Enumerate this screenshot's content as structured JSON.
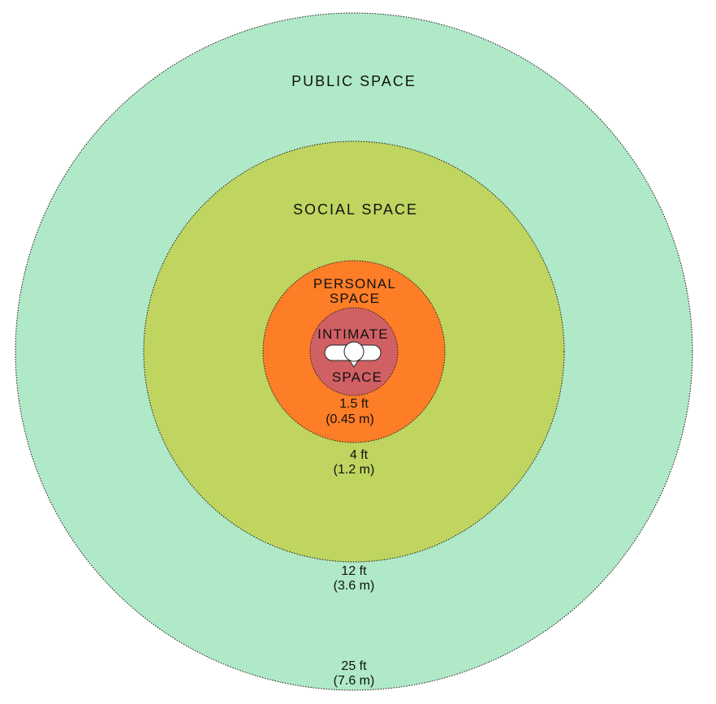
{
  "zones": [
    {
      "id": "public",
      "label": "PUBLIC SPACE",
      "color": "#b0e9c7",
      "distance_ft": "25 ft",
      "distance_m": "(7.6 m)"
    },
    {
      "id": "social",
      "label": "SOCIAL SPACE",
      "color": "#bfd560",
      "distance_ft": "12 ft",
      "distance_m": "(3.6 m)"
    },
    {
      "id": "personal",
      "label_lines": [
        "PERSONAL",
        "SPACE"
      ],
      "color": "#fe7d27",
      "distance_ft": "4 ft",
      "distance_m": "(1.2 m)"
    },
    {
      "id": "intimate",
      "label_lines": [
        "INTIMATE",
        "SPACE"
      ],
      "color": "#d16064",
      "distance_ft": "1.5 ft",
      "distance_m": "(0.45 m)"
    }
  ],
  "center_icon": "person-top-view-icon"
}
